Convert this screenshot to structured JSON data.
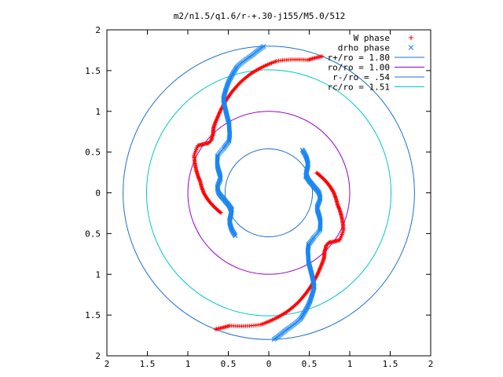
{
  "chart_data": {
    "type": "scatter",
    "title": "m2/n1.5/q1.6/r-+.30-j155/M5.0/512",
    "xlim": [
      -2,
      2
    ],
    "ylim": [
      -2,
      2
    ],
    "x_ticks": [
      -2,
      -1.5,
      -1,
      -0.5,
      0,
      0.5,
      1,
      1.5,
      2
    ],
    "y_ticks": [
      -2,
      -1.5,
      -1,
      -0.5,
      0,
      0.5,
      1,
      1.5,
      2
    ],
    "x_tick_labels": [
      "2",
      "1.5",
      "1",
      "0.5",
      "0",
      "0.5",
      "1",
      "1.5",
      "2"
    ],
    "y_tick_labels": [
      "2",
      "1.5",
      "1",
      "0.5",
      "0",
      "0.5",
      "1",
      "1.5",
      "2"
    ],
    "legend_position": "top-right",
    "series": [
      {
        "name": "W phase",
        "marker": "plus",
        "color": "#ff0000",
        "arms": [
          {
            "start_angle_deg": 68.5,
            "points": [
              [
                1.8,
                0
              ],
              [
                1.7,
                5
              ],
              [
                1.62,
                18
              ],
              [
                1.48,
                30
              ],
              [
                1.4,
                36
              ],
              [
                1.3,
                43
              ],
              [
                1.2,
                50
              ],
              [
                1.12,
                56
              ],
              [
                1.05,
                62
              ],
              [
                1.0,
                65
              ],
              [
                0.96,
                69
              ],
              [
                0.96,
                72
              ],
              [
                1.02,
                76
              ],
              [
                1.05,
                78
              ],
              [
                1.03,
                85
              ],
              [
                0.94,
                94
              ],
              [
                0.86,
                102
              ],
              [
                0.8,
                112
              ],
              [
                0.74,
                120
              ],
              [
                0.68,
                128
              ],
              [
                0.64,
                134
              ]
            ]
          },
          {
            "start_angle_deg": 248.5,
            "points": [
              [
                1.8,
                0
              ],
              [
                1.7,
                5
              ],
              [
                1.62,
                18
              ],
              [
                1.48,
                30
              ],
              [
                1.4,
                36
              ],
              [
                1.3,
                43
              ],
              [
                1.2,
                50
              ],
              [
                1.12,
                56
              ],
              [
                1.05,
                62
              ],
              [
                1.0,
                65
              ],
              [
                0.96,
                69
              ],
              [
                0.96,
                72
              ],
              [
                1.02,
                76
              ],
              [
                1.05,
                78
              ],
              [
                1.03,
                85
              ],
              [
                0.94,
                94
              ],
              [
                0.86,
                102
              ],
              [
                0.8,
                112
              ],
              [
                0.74,
                120
              ],
              [
                0.68,
                128
              ],
              [
                0.64,
                134
              ]
            ]
          }
        ]
      },
      {
        "name": "drho phase",
        "marker": "cross",
        "color": "#1a86f2",
        "arms": [
          {
            "start_angle_deg": 92.0,
            "points": [
              [
                1.8,
                0
              ],
              [
                1.7,
                5
              ],
              [
                1.6,
                12
              ],
              [
                1.45,
                18
              ],
              [
                1.28,
                24
              ],
              [
                1.05,
                27
              ],
              [
                0.98,
                28
              ],
              [
                0.86,
                32
              ],
              [
                0.8,
                36
              ],
              [
                0.78,
                44
              ],
              [
                0.78,
                52
              ],
              [
                0.72,
                60
              ],
              [
                0.64,
                68
              ],
              [
                0.62,
                72
              ],
              [
                0.64,
                82
              ],
              [
                0.62,
                88
              ],
              [
                0.56,
                96
              ],
              [
                0.52,
                104
              ],
              [
                0.5,
                112
              ],
              [
                0.54,
                118
              ],
              [
                0.6,
                124
              ],
              [
                0.64,
                132
              ],
              [
                0.67,
                140
              ]
            ]
          },
          {
            "start_angle_deg": 272.0,
            "points": [
              [
                1.8,
                0
              ],
              [
                1.7,
                5
              ],
              [
                1.6,
                12
              ],
              [
                1.45,
                18
              ],
              [
                1.28,
                24
              ],
              [
                1.05,
                27
              ],
              [
                0.98,
                28
              ],
              [
                0.86,
                32
              ],
              [
                0.8,
                36
              ],
              [
                0.78,
                44
              ],
              [
                0.78,
                52
              ],
              [
                0.72,
                60
              ],
              [
                0.64,
                68
              ],
              [
                0.62,
                72
              ],
              [
                0.64,
                82
              ],
              [
                0.62,
                88
              ],
              [
                0.56,
                96
              ],
              [
                0.52,
                104
              ],
              [
                0.5,
                112
              ],
              [
                0.54,
                118
              ],
              [
                0.6,
                124
              ],
              [
                0.64,
                132
              ],
              [
                0.67,
                140
              ]
            ]
          }
        ]
      },
      {
        "name": "r+/ro = 1.80",
        "type": "circle",
        "radius": 1.8,
        "color": "#1f6fd0"
      },
      {
        "name": "ro/ro = 1.00",
        "type": "circle",
        "radius": 1.0,
        "color": "#9b00c8"
      },
      {
        "name": "r-/ro = .54",
        "type": "circle",
        "radius": 0.54,
        "color": "#1f6fd0"
      },
      {
        "name": "rc/ro = 1.51",
        "type": "circle",
        "radius": 1.51,
        "color": "#00c8c8"
      }
    ]
  }
}
